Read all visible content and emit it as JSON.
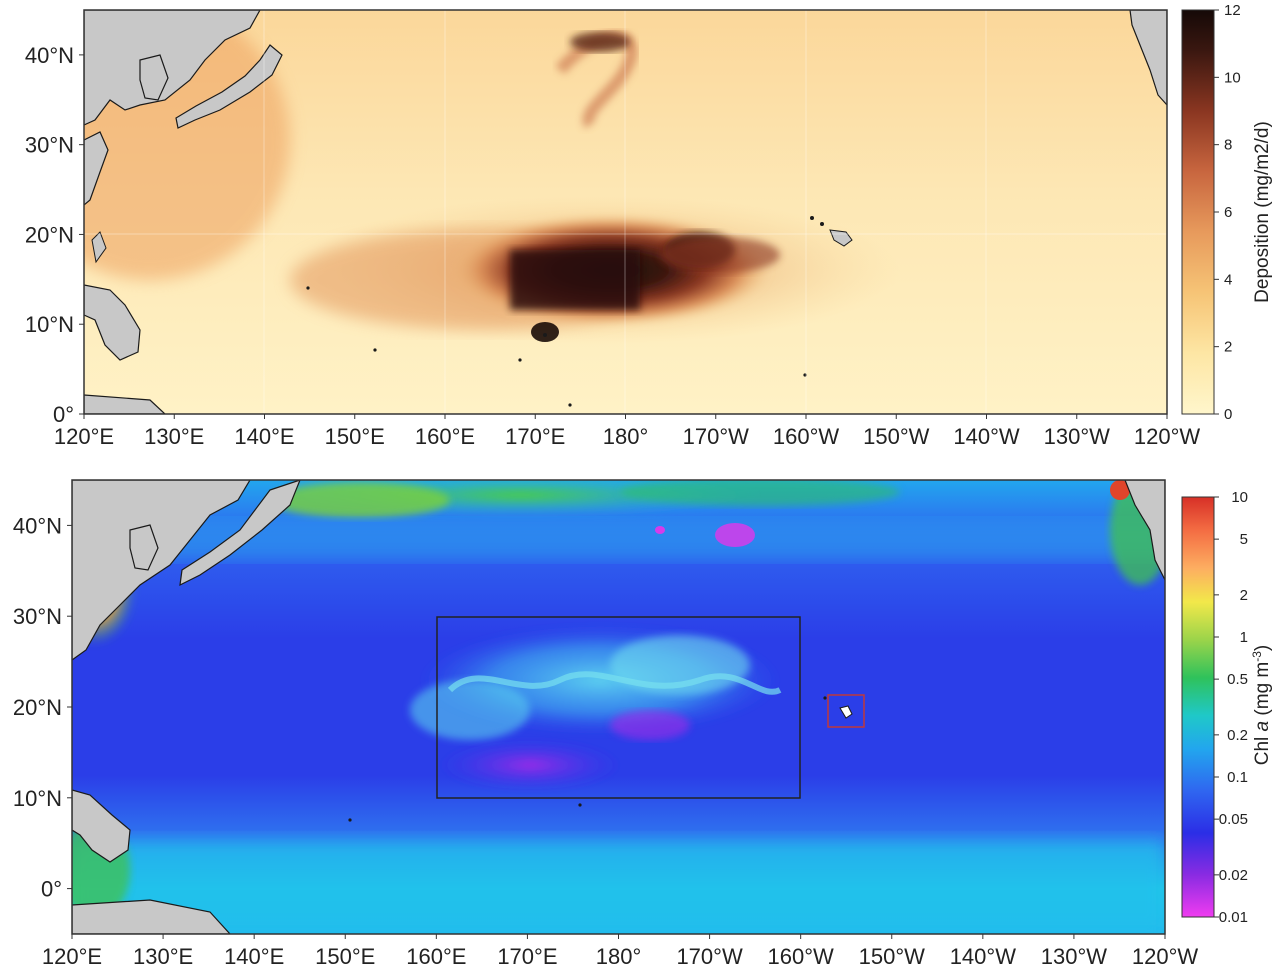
{
  "top_panel": {
    "colorbar": {
      "title": "Deposition (mg/m2/d)",
      "ticks": [
        "0",
        "2",
        "4",
        "6",
        "8",
        "10",
        "12"
      ],
      "stops": [
        "#fff6cc",
        "#fde6a4",
        "#f6c476",
        "#e79a5c",
        "#c8663f",
        "#8a3621",
        "#3a1710",
        "#150907"
      ]
    },
    "x_ticks": [
      "120°E",
      "130°E",
      "140°E",
      "150°E",
      "160°E",
      "170°E",
      "180°",
      "170°W",
      "160°W",
      "150°W",
      "140°W",
      "130°W",
      "120°W"
    ],
    "y_ticks": [
      "40°N",
      "30°N",
      "20°N",
      "10°N",
      "0°"
    ]
  },
  "bottom_panel": {
    "colorbar": {
      "title_main": "Chl ",
      "title_italic": "a",
      "title_unit": " (mg m",
      "title_sup": "-3",
      "title_close": ")",
      "ticks": [
        "10",
        "5",
        "2",
        "1",
        "0.5",
        "0.2",
        "0.1",
        "0.05",
        "0.02",
        "0.01"
      ],
      "stops": [
        "#d73027",
        "#f46d43",
        "#fdae61",
        "#f2e84a",
        "#9bd44a",
        "#2fc25b",
        "#1fc8c8",
        "#22a6ee",
        "#2f66f0",
        "#2b2ee6",
        "#8a2be2",
        "#f03cf0"
      ]
    },
    "x_ticks": [
      "120°E",
      "130°E",
      "140°E",
      "150°E",
      "160°E",
      "170°E",
      "180°",
      "170°W",
      "160°W",
      "150°W",
      "140°W",
      "130°W",
      "120°W"
    ],
    "y_ticks": [
      "40°N",
      "30°N",
      "20°N",
      "10°N",
      "0°"
    ]
  },
  "colors": {
    "land": "#c8c8c8",
    "coast": "#1a1a1a",
    "study_box": "#222222",
    "hawaii_box": "#c0393b"
  }
}
